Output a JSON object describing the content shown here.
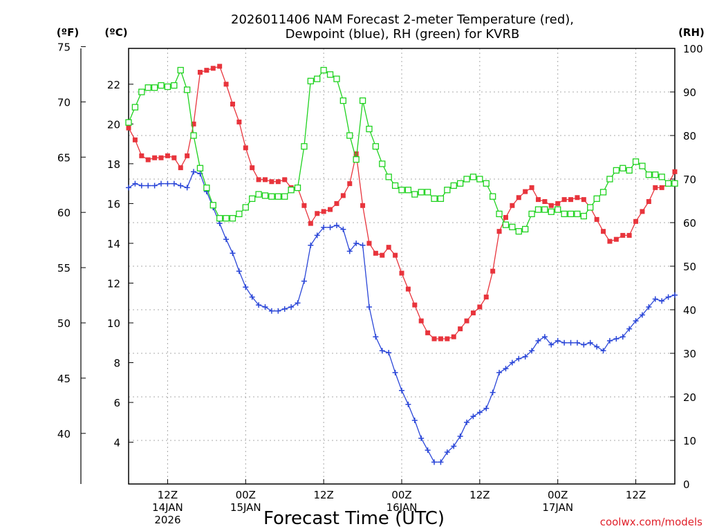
{
  "chart_data": {
    "type": "line",
    "title": [
      "2026011406 NAM Forecast 2-meter Temperature (red),",
      "Dewpoint (blue), RH (green) for KVRB"
    ],
    "xlabel": "Forecast Time (UTC)",
    "credit": "coolwx.com/models",
    "units": {
      "fahrenheit": "(ºF)",
      "celsius": "(ºC)",
      "rh": "(RH)"
    },
    "x_hours_from_start": [
      0,
      84
    ],
    "x_ticks": [
      {
        "hour": 6,
        "lines": [
          "12Z",
          "14JAN",
          "2026"
        ]
      },
      {
        "hour": 18,
        "lines": [
          "00Z",
          "15JAN"
        ]
      },
      {
        "hour": 30,
        "lines": [
          "12Z"
        ]
      },
      {
        "hour": 42,
        "lines": [
          "00Z",
          "16JAN"
        ]
      },
      {
        "hour": 54,
        "lines": [
          "12Z"
        ]
      },
      {
        "hour": 66,
        "lines": [
          "00Z",
          "17JAN"
        ]
      },
      {
        "hour": 78,
        "lines": [
          "12Z"
        ]
      }
    ],
    "y_left_f": {
      "ticks": [
        40,
        45,
        50,
        55,
        60,
        65,
        70,
        75
      ]
    },
    "y_left_c": {
      "ticks": [
        4,
        6,
        8,
        10,
        12,
        14,
        16,
        18,
        20,
        22
      ],
      "range": [
        1.9,
        23.8
      ]
    },
    "y_right_rh": {
      "ticks": [
        0,
        10,
        20,
        30,
        40,
        50,
        60,
        70,
        80,
        90,
        100
      ],
      "range": [
        0,
        100
      ]
    },
    "grid": true,
    "series": [
      {
        "name": "2-meter Temperature (red)",
        "axis": "celsius",
        "color": "#e8343c",
        "marker": "filled-square",
        "x": [
          0,
          1,
          2,
          3,
          4,
          5,
          6,
          7,
          8,
          9,
          10,
          11,
          12,
          13,
          14,
          15,
          16,
          17,
          18,
          19,
          20,
          21,
          22,
          23,
          24,
          25,
          26,
          27,
          28,
          29,
          30,
          31,
          32,
          33,
          34,
          35,
          36,
          37,
          38,
          39,
          40,
          41,
          42,
          43,
          44,
          45,
          46,
          47,
          48,
          49,
          50,
          51,
          52,
          53,
          54,
          55,
          56,
          57,
          58,
          59,
          60,
          61,
          62,
          63,
          64,
          65,
          66,
          67,
          68,
          69,
          70,
          71,
          72,
          73,
          74,
          75,
          76,
          77,
          78,
          79,
          80,
          81,
          82,
          83,
          84
        ],
        "y": [
          19.8,
          19.2,
          18.4,
          18.2,
          18.3,
          18.3,
          18.4,
          18.3,
          17.8,
          18.4,
          20.0,
          22.6,
          22.7,
          22.8,
          22.9,
          22.0,
          21.0,
          20.1,
          18.8,
          17.8,
          17.2,
          17.2,
          17.1,
          17.1,
          17.2,
          16.8,
          16.8,
          15.9,
          15.0,
          15.5,
          15.6,
          15.7,
          16.0,
          16.4,
          17.0,
          18.5,
          15.9,
          14.0,
          13.5,
          13.4,
          13.8,
          13.4,
          12.5,
          11.7,
          10.9,
          10.1,
          9.5,
          9.2,
          9.2,
          9.2,
          9.3,
          9.7,
          10.1,
          10.5,
          10.8,
          11.3,
          12.6,
          14.6,
          15.3,
          15.9,
          16.3,
          16.6,
          16.8,
          16.2,
          16.1,
          15.9,
          16.0,
          16.2,
          16.2,
          16.3,
          16.2,
          15.8,
          15.2,
          14.6,
          14.1,
          14.2,
          14.4,
          14.4,
          15.1,
          15.6,
          16.1,
          16.8,
          16.8,
          17.0,
          17.6
        ]
      },
      {
        "name": "Dewpoint (blue)",
        "axis": "celsius",
        "color": "#2a46d8",
        "marker": "plus",
        "x": [
          0,
          1,
          2,
          3,
          4,
          5,
          6,
          7,
          8,
          9,
          10,
          11,
          12,
          13,
          14,
          15,
          16,
          17,
          18,
          19,
          20,
          21,
          22,
          23,
          24,
          25,
          26,
          27,
          28,
          29,
          30,
          31,
          32,
          33,
          34,
          35,
          36,
          37,
          38,
          39,
          40,
          41,
          42,
          43,
          44,
          45,
          46,
          47,
          48,
          49,
          50,
          51,
          52,
          53,
          54,
          55,
          56,
          57,
          58,
          59,
          60,
          61,
          62,
          63,
          64,
          65,
          66,
          67,
          68,
          69,
          70,
          71,
          72,
          73,
          74,
          75,
          76,
          77,
          78,
          79,
          80,
          81,
          82,
          83,
          84
        ],
        "y": [
          16.8,
          17.0,
          16.9,
          16.9,
          16.9,
          17.0,
          17.0,
          17.0,
          16.9,
          16.8,
          17.6,
          17.5,
          16.6,
          15.8,
          15.0,
          14.2,
          13.5,
          12.6,
          11.8,
          11.3,
          10.9,
          10.8,
          10.6,
          10.6,
          10.7,
          10.8,
          11.0,
          12.1,
          13.9,
          14.4,
          14.8,
          14.8,
          14.9,
          14.7,
          13.6,
          14.0,
          13.9,
          10.8,
          9.3,
          8.6,
          8.5,
          7.5,
          6.6,
          5.9,
          5.1,
          4.2,
          3.6,
          3.0,
          3.0,
          3.5,
          3.8,
          4.3,
          5.0,
          5.3,
          5.5,
          5.7,
          6.5,
          7.5,
          7.7,
          8.0,
          8.2,
          8.3,
          8.6,
          9.1,
          9.3,
          8.9,
          9.1,
          9.0,
          9.0,
          9.0,
          8.9,
          9.0,
          8.8,
          8.6,
          9.1,
          9.2,
          9.3,
          9.7,
          10.1,
          10.4,
          10.8,
          11.2,
          11.1,
          11.3,
          11.4
        ]
      },
      {
        "name": "RH (green)",
        "axis": "rh",
        "color": "#1ed21e",
        "marker": "hollow-square",
        "x": [
          0,
          1,
          2,
          3,
          4,
          5,
          6,
          7,
          8,
          9,
          10,
          11,
          12,
          13,
          14,
          15,
          16,
          17,
          18,
          19,
          20,
          21,
          22,
          23,
          24,
          25,
          26,
          27,
          28,
          29,
          30,
          31,
          32,
          33,
          34,
          35,
          36,
          37,
          38,
          39,
          40,
          41,
          42,
          43,
          44,
          45,
          46,
          47,
          48,
          49,
          50,
          51,
          52,
          53,
          54,
          55,
          56,
          57,
          58,
          59,
          60,
          61,
          62,
          63,
          64,
          65,
          66,
          67,
          68,
          69,
          70,
          71,
          72,
          73,
          74,
          75,
          76,
          77,
          78,
          79,
          80,
          81,
          82,
          83,
          84
        ],
        "y": [
          83,
          86.5,
          90,
          91,
          91,
          91.5,
          91.2,
          91.5,
          95,
          90.5,
          80,
          72.5,
          68,
          64,
          61,
          61,
          61,
          62,
          63.5,
          65.5,
          66.5,
          66.2,
          66,
          66,
          66,
          67.5,
          68,
          77.5,
          92.5,
          93,
          95,
          94,
          93,
          88,
          80,
          74.5,
          88,
          81.5,
          77.5,
          73.5,
          70.5,
          68.5,
          67.5,
          67.5,
          66.5,
          67,
          67,
          65.5,
          65.5,
          67.5,
          68.5,
          69,
          70,
          70.5,
          70,
          69,
          66,
          62,
          59.5,
          59,
          58,
          58.5,
          62,
          63,
          63,
          62.5,
          63,
          62,
          62,
          62,
          61.5,
          63.5,
          65.5,
          67,
          70,
          72,
          72.5,
          72,
          74,
          73,
          71,
          71,
          70.5,
          69,
          69
        ]
      }
    ]
  }
}
